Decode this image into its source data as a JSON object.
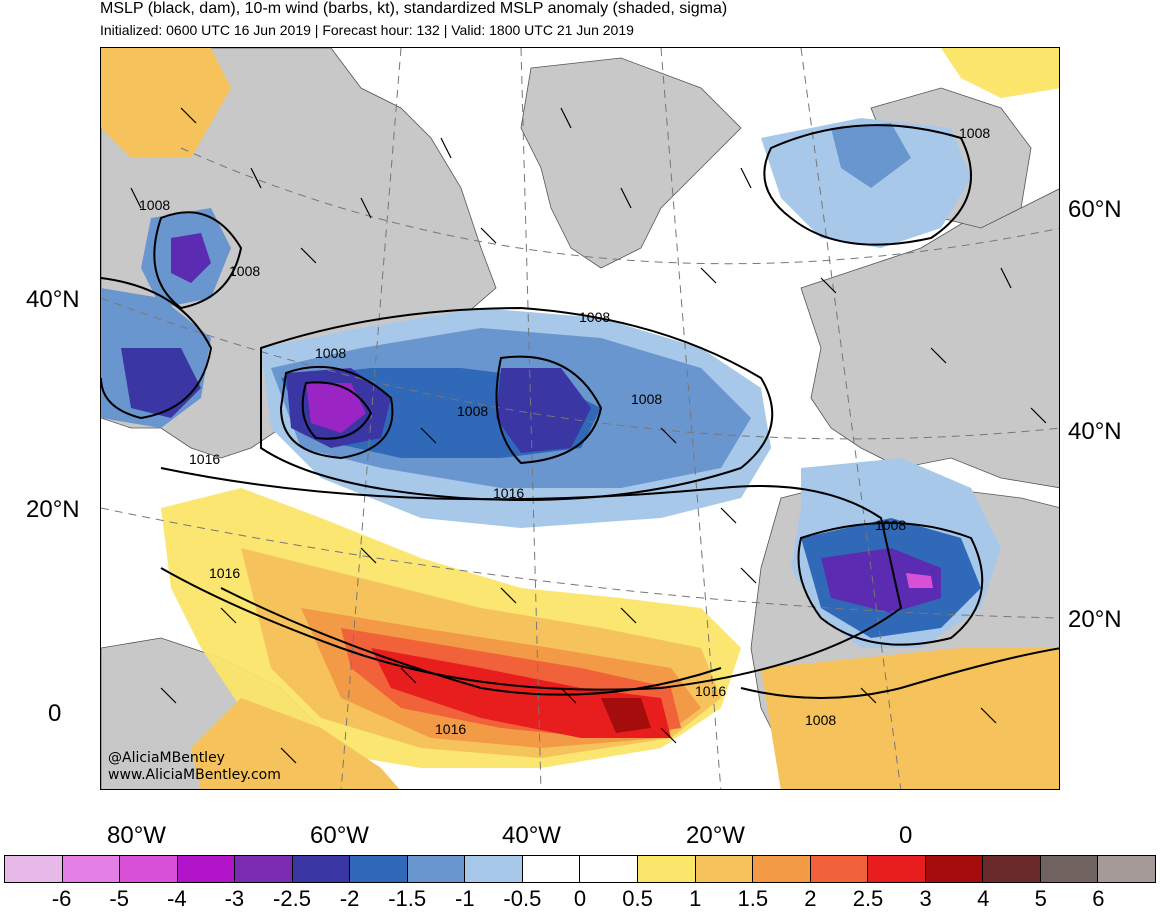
{
  "header": {
    "title": "MSLP (black, dam), 10-m wind (barbs, kt), standardized MSLP anomaly (shaded, sigma)",
    "subtitle": "Initialized: 0600 UTC 16 Jun 2019 | Forecast hour: 132 | Valid: 1800 UTC 21 Jun 2019"
  },
  "map": {
    "lat_labels_left": [
      "40°N",
      "20°N",
      "0"
    ],
    "lat_labels_right": [
      "60°N",
      "40°N",
      "20°N"
    ],
    "lon_labels": [
      "80°W",
      "60°W",
      "40°W",
      "20°W",
      "0"
    ],
    "isobar_labels": {
      "l1008_a": "1008",
      "l1008_b": "1008",
      "l1008_c": "1008",
      "l1008_d": "1008",
      "l1008_e": "1008",
      "l1008_f": "1008",
      "l1008_g": "1008",
      "l1008_h": "1008",
      "l1016_a": "1016",
      "l1016_b": "1016",
      "l1016_c": "1016",
      "l1016_d": "1016",
      "l1016_e": "1016"
    },
    "credit_handle": "@AliciaMBentley",
    "credit_url": "www.AliciaMBentley.com"
  },
  "colorbar": {
    "colors": [
      "#e7b9e8",
      "#e47fe6",
      "#d84fd8",
      "#b215c9",
      "#7b2bb1",
      "#3a36a4",
      "#2f69b8",
      "#6a96d0",
      "#a7c8e8",
      "#ffffff",
      "#ffffff",
      "#fbe56a",
      "#f5c25c",
      "#f39a47",
      "#f1613a",
      "#e81d1d",
      "#a50d0d",
      "#6b2a2a",
      "#716360",
      "#a69a98"
    ],
    "labels": [
      "-6",
      "-5",
      "-4",
      "-3",
      "-2.5",
      "-2",
      "-1.5",
      "-1",
      "-0.5",
      "0",
      "0.5",
      "1",
      "1.5",
      "2",
      "2.5",
      "3",
      "4",
      "5",
      "6"
    ]
  }
}
